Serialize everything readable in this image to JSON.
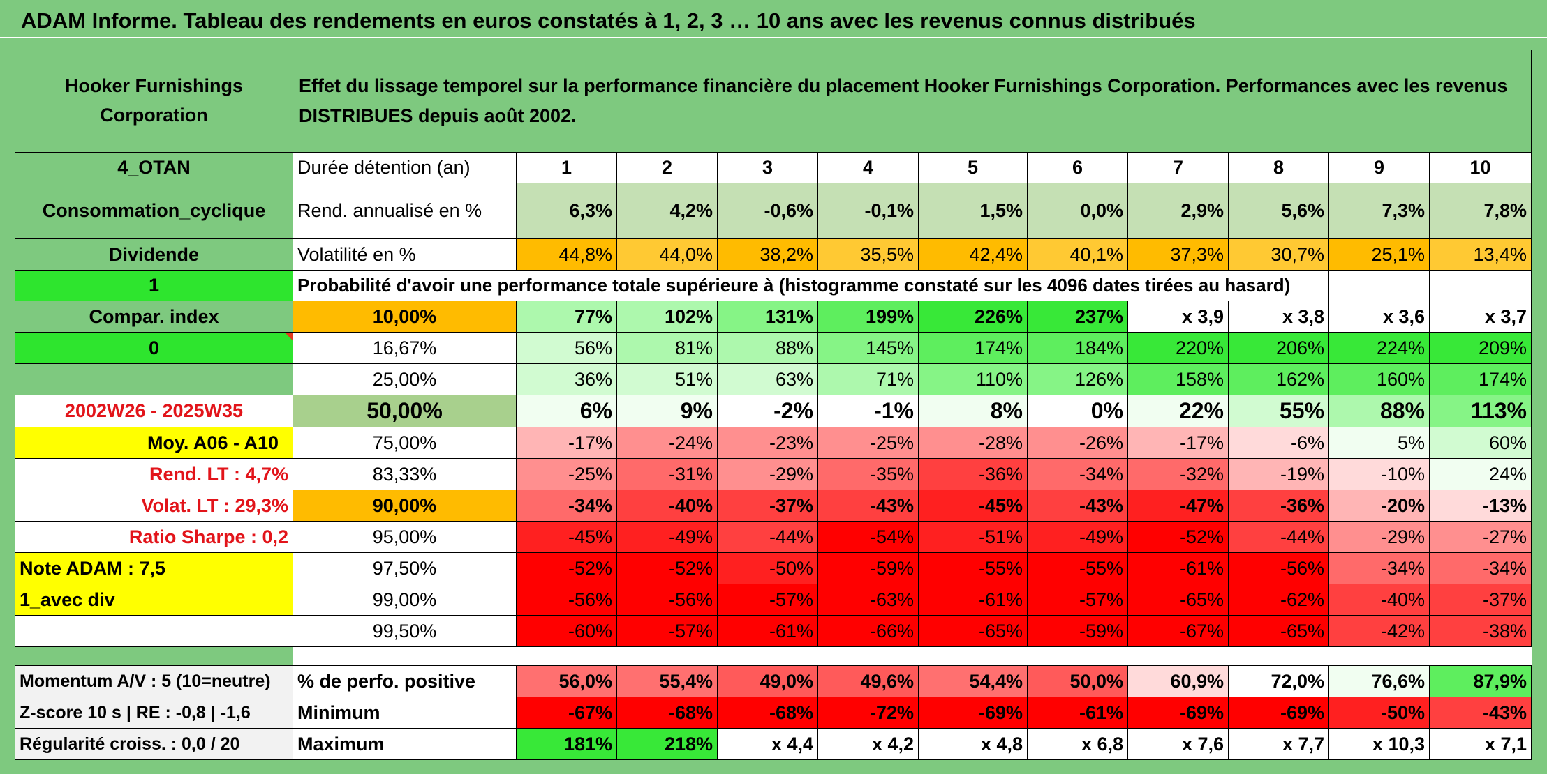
{
  "title": "ADAM Informe. Tableau des rendements en euros constatés à 1, 2, 3 … 10 ans avec les revenus connus distribués",
  "colors": {
    "header_green": "#7ec97f",
    "bright_green": "#2ee52e",
    "yellow": "#ffff00",
    "orange": "#ffbb00",
    "red": "#ff0000"
  },
  "header": {
    "company": "Hooker Furnishings Corporation",
    "description": "Effet du lissage temporel sur la performance financière du placement Hooker Furnishings Corporation. Performances avec les revenus DISTRIBUES depuis août 2002."
  },
  "years": [
    "1",
    "2",
    "3",
    "4",
    "5",
    "6",
    "7",
    "8",
    "9",
    "10"
  ],
  "rows": {
    "durations": {
      "side": "4_OTAN",
      "label": "Durée détention (an)"
    },
    "annual": {
      "side": "Consommation_cyclique",
      "label": "Rend. annualisé en %",
      "values": [
        "6,3%",
        "4,2%",
        "-0,6%",
        "-0,1%",
        "1,5%",
        "0,0%",
        "2,9%",
        "5,6%",
        "7,3%",
        "7,8%"
      ]
    },
    "volatility": {
      "side": "Dividende",
      "label": "Volatilité en %",
      "values": [
        "44,8%",
        "44,0%",
        "38,2%",
        "35,5%",
        "42,4%",
        "40,1%",
        "37,3%",
        "30,7%",
        "25,1%",
        "13,4%"
      ]
    },
    "prob_header": {
      "side": "1",
      "label": "Probabilité d'avoir une performance totale supérieure à (histogramme constaté sur les 4096 dates tirées au hasard)"
    },
    "quantiles": [
      {
        "side": "Compar. index",
        "pct": "10,00%",
        "values": [
          "77%",
          "102%",
          "131%",
          "199%",
          "226%",
          "237%",
          "x 3,9",
          "x 3,8",
          "x 3,6",
          "x 3,7"
        ]
      },
      {
        "side": "0",
        "pct": "16,67%",
        "values": [
          "56%",
          "81%",
          "88%",
          "145%",
          "174%",
          "184%",
          "220%",
          "206%",
          "224%",
          "209%"
        ]
      },
      {
        "side": "",
        "pct": "25,00%",
        "values": [
          "36%",
          "51%",
          "63%",
          "71%",
          "110%",
          "126%",
          "158%",
          "162%",
          "160%",
          "174%"
        ]
      },
      {
        "side": "2002W26 - 2025W35",
        "pct": "50,00%",
        "values": [
          "6%",
          "9%",
          "-2%",
          "-1%",
          "8%",
          "0%",
          "22%",
          "55%",
          "88%",
          "113%"
        ]
      },
      {
        "side": "Moy. A06 - A10",
        "pct": "75,00%",
        "values": [
          "-17%",
          "-24%",
          "-23%",
          "-25%",
          "-28%",
          "-26%",
          "-17%",
          "-6%",
          "5%",
          "60%"
        ]
      },
      {
        "side": "Rend. LT :    4,7%",
        "pct": "83,33%",
        "values": [
          "-25%",
          "-31%",
          "-29%",
          "-35%",
          "-36%",
          "-34%",
          "-32%",
          "-19%",
          "-10%",
          "24%"
        ]
      },
      {
        "side": "Volat. LT :   29,3%",
        "pct": "90,00%",
        "values": [
          "-34%",
          "-40%",
          "-37%",
          "-43%",
          "-45%",
          "-43%",
          "-47%",
          "-36%",
          "-20%",
          "-13%"
        ]
      },
      {
        "side": "Ratio Sharpe :    0,2",
        "pct": "95,00%",
        "values": [
          "-45%",
          "-49%",
          "-44%",
          "-54%",
          "-51%",
          "-49%",
          "-52%",
          "-44%",
          "-29%",
          "-27%"
        ]
      },
      {
        "side": "Note ADAM : 7,5",
        "pct": "97,50%",
        "values": [
          "-52%",
          "-52%",
          "-50%",
          "-59%",
          "-55%",
          "-55%",
          "-61%",
          "-56%",
          "-34%",
          "-34%"
        ]
      },
      {
        "side": "1_avec div",
        "pct": "99,00%",
        "values": [
          "-56%",
          "-56%",
          "-57%",
          "-63%",
          "-61%",
          "-57%",
          "-65%",
          "-62%",
          "-40%",
          "-37%"
        ]
      },
      {
        "side": "",
        "pct": "99,50%",
        "values": [
          "-60%",
          "-57%",
          "-61%",
          "-66%",
          "-65%",
          "-59%",
          "-67%",
          "-65%",
          "-42%",
          "-38%"
        ]
      }
    ],
    "stats": [
      {
        "side": "Momentum A/V : 5 (10=neutre)",
        "label": "% de perfo. positive",
        "values": [
          "56,0%",
          "55,4%",
          "49,0%",
          "49,6%",
          "54,4%",
          "50,0%",
          "60,9%",
          "72,0%",
          "76,6%",
          "87,9%"
        ]
      },
      {
        "side": "Z-score 10 s | RE : -0,8 | -1,6",
        "label": "Minimum",
        "values": [
          "-67%",
          "-68%",
          "-68%",
          "-72%",
          "-69%",
          "-61%",
          "-69%",
          "-69%",
          "-50%",
          "-43%"
        ]
      },
      {
        "side": "Régularité croiss. : 0,0 / 20",
        "label": "Maximum",
        "values": [
          "181%",
          "218%",
          "x 4,4",
          "x 4,2",
          "x 4,8",
          "x 6,8",
          "x 7,6",
          "x 7,7",
          "x 10,3",
          "x 7,1"
        ]
      }
    ]
  }
}
